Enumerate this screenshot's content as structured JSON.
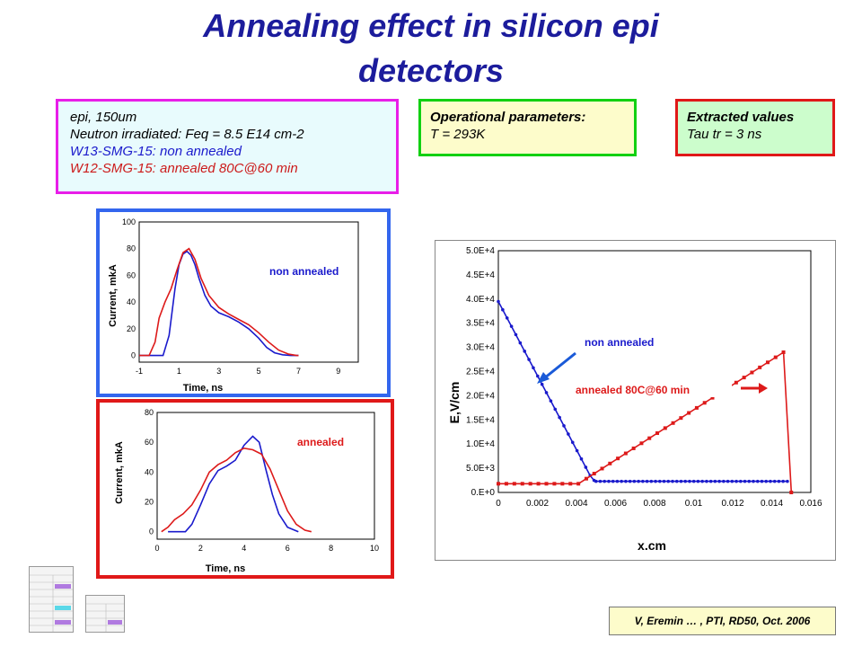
{
  "title": {
    "line1": "Annealing effect in silicon epi",
    "line2": "detectors"
  },
  "info_box": {
    "lines": [
      "epi, 150um",
      "Neutron irradiated: Feq = 8.5 E14 cm-2",
      "W13-SMG-15: non annealed",
      "W12-SMG-15: annealed 80C@60 min"
    ],
    "colors": [
      "#000000",
      "#000000",
      "#1a1acc",
      "#cc1a1a"
    ],
    "border": "#e81ee8",
    "bg": "#e8fbfd"
  },
  "operational_box": {
    "heading": "Operational parameters:",
    "value": "T = 293K",
    "border": "#12d012",
    "bg": "#fdfccb"
  },
  "extracted_box": {
    "heading": "Extracted values",
    "value": "Tau tr = 3 ns",
    "border": "#e01818",
    "bg": "#ccfdcc"
  },
  "citation": "V, Eremin … , PTI, RD50, Oct. 2006",
  "colors": {
    "blue": "#1a1acc",
    "red": "#dd1a1a"
  },
  "chart_data": [
    {
      "type": "line",
      "label": "non annealed",
      "xlabel": "Time, ns",
      "ylabel": "Current, mkA",
      "xlim": [
        -1,
        10
      ],
      "ylim": [
        -5,
        100
      ],
      "xticks": [
        -1,
        1,
        3,
        5,
        7,
        9
      ],
      "yticks": [
        0,
        20,
        40,
        60,
        80,
        100
      ],
      "grid": true,
      "frame_color": "#3366ee",
      "series": [
        {
          "color": "#1a1acc",
          "x": [
            -1,
            0.2,
            0.5,
            0.8,
            1.0,
            1.2,
            1.4,
            1.6,
            1.8,
            2.0,
            2.3,
            2.6,
            3.0,
            3.5,
            4.0,
            4.5,
            5.0,
            5.4,
            5.8,
            6.2,
            6.6,
            7.0
          ],
          "y": [
            0,
            0,
            15,
            50,
            68,
            76,
            78,
            75,
            68,
            58,
            45,
            37,
            32,
            29,
            25,
            20,
            13,
            6,
            2,
            0.5,
            0,
            0
          ]
        },
        {
          "color": "#dd1a1a",
          "x": [
            -1,
            -0.5,
            -0.2,
            0.0,
            0.3,
            0.6,
            0.9,
            1.2,
            1.5,
            1.8,
            2.1,
            2.5,
            3.0,
            3.5,
            4.0,
            4.5,
            5.0,
            5.5,
            6.0,
            6.5,
            6.9,
            7.0
          ],
          "y": [
            0,
            0,
            10,
            28,
            40,
            50,
            64,
            77,
            80,
            72,
            58,
            45,
            36,
            31,
            27,
            23,
            17,
            10,
            4,
            1,
            0,
            0
          ]
        }
      ]
    },
    {
      "type": "line",
      "label": "annealed",
      "xlabel": "Time, ns",
      "ylabel": "Current, mkA",
      "xlim": [
        0,
        10
      ],
      "ylim": [
        -5,
        80
      ],
      "xticks": [
        0,
        2,
        4,
        6,
        8,
        10
      ],
      "yticks": [
        0,
        20,
        40,
        60,
        80
      ],
      "grid": true,
      "frame_color": "#e01818",
      "series": [
        {
          "color": "#1a1acc",
          "x": [
            0.5,
            1.3,
            1.6,
            2.0,
            2.4,
            2.8,
            3.2,
            3.6,
            4.0,
            4.4,
            4.7,
            5.0,
            5.3,
            5.6,
            6.0,
            6.5
          ],
          "y": [
            0,
            0,
            5,
            18,
            32,
            41,
            44,
            48,
            58,
            64,
            60,
            42,
            25,
            12,
            3,
            0
          ]
        },
        {
          "color": "#dd1a1a",
          "x": [
            0.2,
            0.5,
            0.8,
            1.2,
            1.6,
            2.0,
            2.4,
            2.8,
            3.2,
            3.6,
            4.0,
            4.4,
            4.8,
            5.2,
            5.6,
            6.0,
            6.4,
            6.8,
            7.1
          ],
          "y": [
            0,
            3,
            8,
            12,
            18,
            28,
            40,
            45,
            48,
            53,
            56,
            55,
            52,
            42,
            28,
            14,
            5,
            1,
            0
          ]
        }
      ]
    },
    {
      "type": "line",
      "xlabel": "x.cm",
      "ylabel": "E,V/cm",
      "xlim": [
        0,
        0.016
      ],
      "ylim": [
        0,
        50000
      ],
      "xticks": [
        0,
        0.002,
        0.004,
        0.006,
        0.008,
        0.01,
        0.012,
        0.014,
        0.016
      ],
      "xtick_labels": [
        "0",
        "0.002",
        "0.004",
        "0.006",
        "0.008",
        "0.01",
        "0.012",
        "0.014",
        "0.016"
      ],
      "yticks": [
        0,
        5000,
        10000,
        15000,
        20000,
        25000,
        30000,
        35000,
        40000,
        45000,
        50000
      ],
      "ytick_labels": [
        "0.E+0",
        "5.0E+3",
        "1.0E+4",
        "1.5E+4",
        "2.0E+4",
        "2.5E+4",
        "3.0E+4",
        "3.5E+4",
        "4.0E+4",
        "4.5E+4",
        "5.0E+4"
      ],
      "grid": true,
      "annotations": [
        "non annealed",
        "annealed 80C@60 min"
      ],
      "series": [
        {
          "color": "#1a1acc",
          "marker": "circle",
          "x": [
            0,
            0.0047,
            0.0049,
            0.005,
            0.0148
          ],
          "y": [
            39500,
            3500,
            2500,
            2300,
            2300
          ]
        },
        {
          "color": "#dd1a1a",
          "marker": "square",
          "x": [
            0,
            0.0041,
            0.0146,
            0.015
          ],
          "y": [
            1800,
            1800,
            29000,
            0
          ]
        }
      ]
    }
  ]
}
